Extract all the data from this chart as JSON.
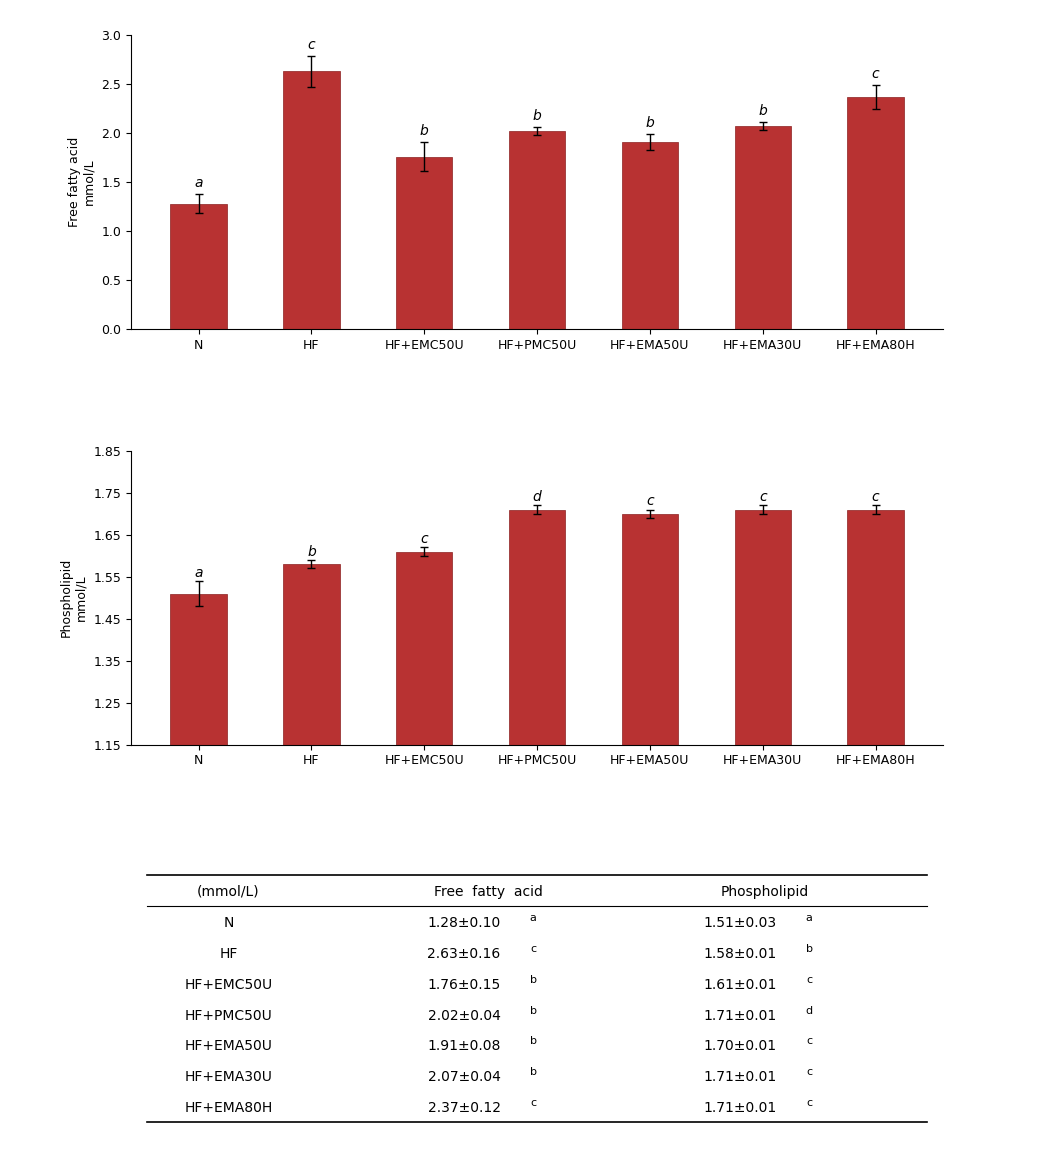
{
  "categories": [
    "N",
    "HF",
    "HF+EMC50U",
    "HF+PMC50U",
    "HF+EMA50U",
    "HF+EMA30U",
    "HF+EMA80H"
  ],
  "ffa_values": [
    1.28,
    2.63,
    1.76,
    2.02,
    1.91,
    2.07,
    2.37
  ],
  "ffa_errors": [
    0.1,
    0.16,
    0.15,
    0.04,
    0.08,
    0.04,
    0.12
  ],
  "ffa_letters": [
    "a",
    "c",
    "b",
    "b",
    "b",
    "b",
    "c"
  ],
  "ffa_ylim": [
    0,
    3.0
  ],
  "ffa_yticks": [
    0,
    0.5,
    1.0,
    1.5,
    2.0,
    2.5,
    3.0
  ],
  "ffa_ylabel": "Free fatty acid\nmmol/L",
  "pl_values": [
    1.51,
    1.58,
    1.61,
    1.71,
    1.7,
    1.71,
    1.71
  ],
  "pl_errors": [
    0.03,
    0.01,
    0.01,
    0.01,
    0.01,
    0.01,
    0.01
  ],
  "pl_letters": [
    "a",
    "b",
    "c",
    "d",
    "c",
    "c",
    "c"
  ],
  "pl_ylim": [
    1.15,
    1.85
  ],
  "pl_yticks": [
    1.15,
    1.25,
    1.35,
    1.45,
    1.55,
    1.65,
    1.75,
    1.85
  ],
  "pl_ylabel": "Phospholipid\nmmol/L",
  "bar_color": "#b83232",
  "bar_edge_color": "#8b2020",
  "error_color": "black",
  "table_header": [
    "(mmol/L)",
    "Free  fatty  acid",
    "Phospholipid"
  ],
  "table_rows": [
    [
      "N",
      "1.28±0.10",
      "a",
      "1.51±0.03",
      "a"
    ],
    [
      "HF",
      "2.63±0.16",
      "c",
      "1.58±0.01",
      "b"
    ],
    [
      "HF+EMC50U",
      "1.76±0.15",
      "b",
      "1.61±0.01",
      "c"
    ],
    [
      "HF+PMC50U",
      "2.02±0.04",
      "b",
      "1.71±0.01",
      "d"
    ],
    [
      "HF+EMA50U",
      "1.91±0.08",
      "b",
      "1.70±0.01",
      "c"
    ],
    [
      "HF+EMA30U",
      "2.07±0.04",
      "b",
      "1.71±0.01",
      "c"
    ],
    [
      "HF+EMA80H",
      "2.37±0.12",
      "c",
      "1.71±0.01",
      "c"
    ]
  ]
}
